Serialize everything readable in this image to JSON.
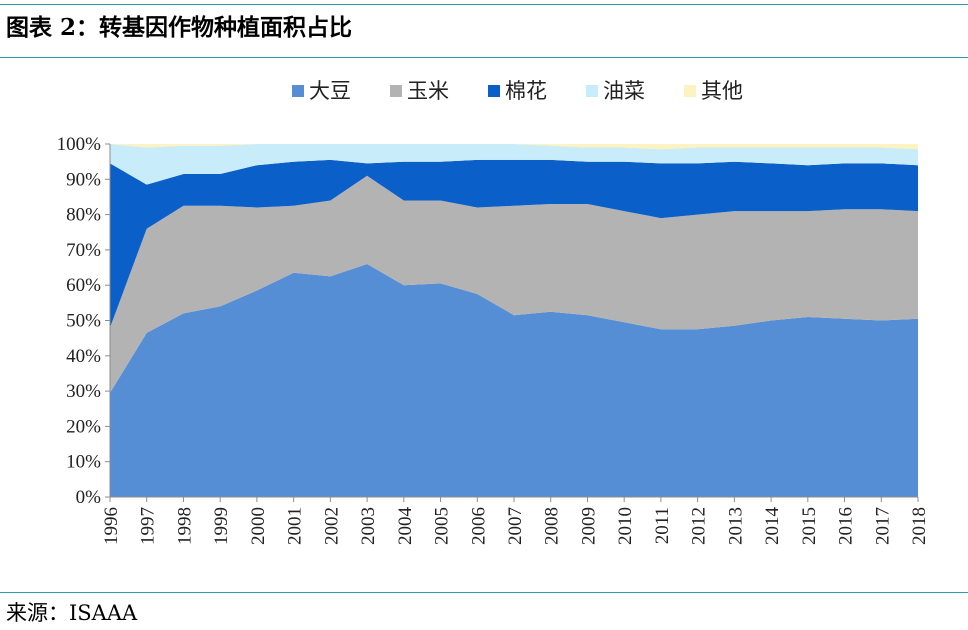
{
  "header": {
    "title": "图表 2：转基因作物种植面积占比"
  },
  "footer": {
    "source": "来源：ISAAA"
  },
  "chart_data": {
    "type": "area",
    "stacked": true,
    "categories": [
      "1996",
      "1997",
      "1998",
      "1999",
      "2000",
      "2001",
      "2002",
      "2003",
      "2004",
      "2005",
      "2006",
      "2007",
      "2008",
      "2009",
      "2010",
      "2011",
      "2012",
      "2013",
      "2014",
      "2015",
      "2016",
      "2017",
      "2018"
    ],
    "ylim": [
      0,
      100
    ],
    "y_ticks": [
      "0%",
      "10%",
      "20%",
      "30%",
      "40%",
      "50%",
      "60%",
      "70%",
      "80%",
      "90%",
      "100%"
    ],
    "legend_position": "top",
    "series": [
      {
        "name": "大豆",
        "color": "#558ed5",
        "values": [
          29.5,
          46.5,
          52,
          54,
          58.5,
          63.5,
          62.5,
          66,
          60,
          60.5,
          57.5,
          51.5,
          52.5,
          51.5,
          49.5,
          47.5,
          47.5,
          48.5,
          50,
          51,
          50.5,
          50,
          50.5
        ]
      },
      {
        "name": "玉米",
        "color": "#b3b3b3",
        "values": [
          18.5,
          29.5,
          30.5,
          28.5,
          23.5,
          19,
          21.5,
          25,
          24,
          23.5,
          24.5,
          31,
          30.5,
          31.5,
          31.5,
          31.5,
          32.5,
          32.5,
          31,
          30,
          31,
          31.5,
          30.5
        ]
      },
      {
        "name": "棉花",
        "color": "#0a5fc9",
        "values": [
          46.5,
          12.5,
          9,
          9,
          12,
          12.5,
          11.5,
          3.5,
          11,
          11,
          13.5,
          13,
          12.5,
          12,
          14,
          15.5,
          14.5,
          14,
          13.5,
          13,
          13,
          13,
          13
        ]
      },
      {
        "name": "油菜",
        "color": "#c9ecfa",
        "values": [
          5.5,
          10.5,
          8,
          8,
          6,
          5,
          4.5,
          5.5,
          5,
          5,
          4.5,
          4.5,
          4,
          4,
          4,
          4,
          4.5,
          4,
          4.5,
          5,
          4.5,
          4.5,
          4.5
        ]
      },
      {
        "name": "其他",
        "color": "#fdf2c2",
        "values": [
          0,
          1,
          0.5,
          0.5,
          0,
          0,
          0,
          0,
          0,
          0,
          0,
          0,
          0.5,
          1,
          1,
          1.5,
          1,
          1,
          1,
          1,
          1,
          1,
          1.5
        ]
      }
    ]
  }
}
